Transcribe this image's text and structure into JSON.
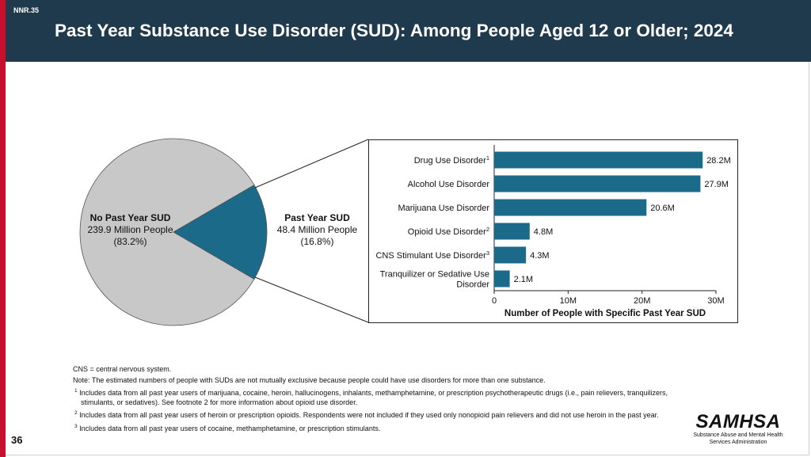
{
  "slide": {
    "id": "NNR.35",
    "title": "Past Year Substance Use Disorder (SUD): Among People Aged 12 or Older; 2024",
    "page_number": "36"
  },
  "pie": {
    "no_sud": {
      "heading": "No Past Year SUD",
      "count": "239.9 Million People",
      "pct": "(83.2%)"
    },
    "sud": {
      "heading": "Past Year SUD",
      "count": "48.4 Million People",
      "pct": "(16.8%)"
    }
  },
  "colors": {
    "header": "#1f3a4d",
    "accent_bar": "#c8102e",
    "pie_gray": "#c8c8c8",
    "series": "#1b6a8a"
  },
  "chart_data": [
    {
      "type": "pie",
      "slices": [
        {
          "label": "No Past Year SUD",
          "value": 239.9,
          "percent": 83.2
        },
        {
          "label": "Past Year SUD",
          "value": 48.4,
          "percent": 16.8
        }
      ]
    },
    {
      "type": "bar",
      "orientation": "horizontal",
      "categories": [
        {
          "label": "Drug Use Disorder",
          "sup": "1"
        },
        {
          "label": "Alcohol Use Disorder",
          "sup": ""
        },
        {
          "label": "Marijuana Use Disorder",
          "sup": ""
        },
        {
          "label": "Opioid Use Disorder",
          "sup": "2"
        },
        {
          "label": "CNS Stimulant Use Disorder",
          "sup": "3"
        },
        {
          "label": "Tranquilizer or Sedative Use Disorder",
          "sup": ""
        }
      ],
      "values": [
        28.2,
        27.9,
        20.6,
        4.8,
        4.3,
        2.1
      ],
      "data_labels": [
        "28.2M",
        "27.9M",
        "20.6M",
        "4.8M",
        "4.3M",
        "2.1M"
      ],
      "xlabel": "Number of People with Specific Past Year SUD",
      "xlim": [
        0,
        30
      ],
      "xticks": [
        0,
        10,
        20,
        30
      ],
      "xtick_labels": [
        "0",
        "10M",
        "20M",
        "30M"
      ],
      "grid": false,
      "legend": "none"
    }
  ],
  "notes": {
    "abbrev": "CNS = central nervous system.",
    "note": "Note: The estimated numbers of people with SUDs are not mutually exclusive because people could have use disorders for more than one substance.",
    "footnotes": [
      {
        "mark": "1",
        "text": "Includes data from all past year users of marijuana, cocaine, heroin, hallucinogens, inhalants, methamphetamine, or prescription psychotherapeutic drugs (i.e., pain relievers, tranquilizers, stimulants, or sedatives). See footnote 2 for more information about opioid use disorder."
      },
      {
        "mark": "2",
        "text": "Includes data from all past year users of heroin or prescription opioids. Respondents were not included if they used only nonopioid pain relievers and did not use heroin in the past year."
      },
      {
        "mark": "3",
        "text": "Includes data from all past year users of cocaine, methamphetamine, or prescription stimulants."
      }
    ]
  },
  "logo": {
    "word": "SAMHSA",
    "line1": "Substance Abuse and Mental Health",
    "line2": "Services Administration"
  }
}
